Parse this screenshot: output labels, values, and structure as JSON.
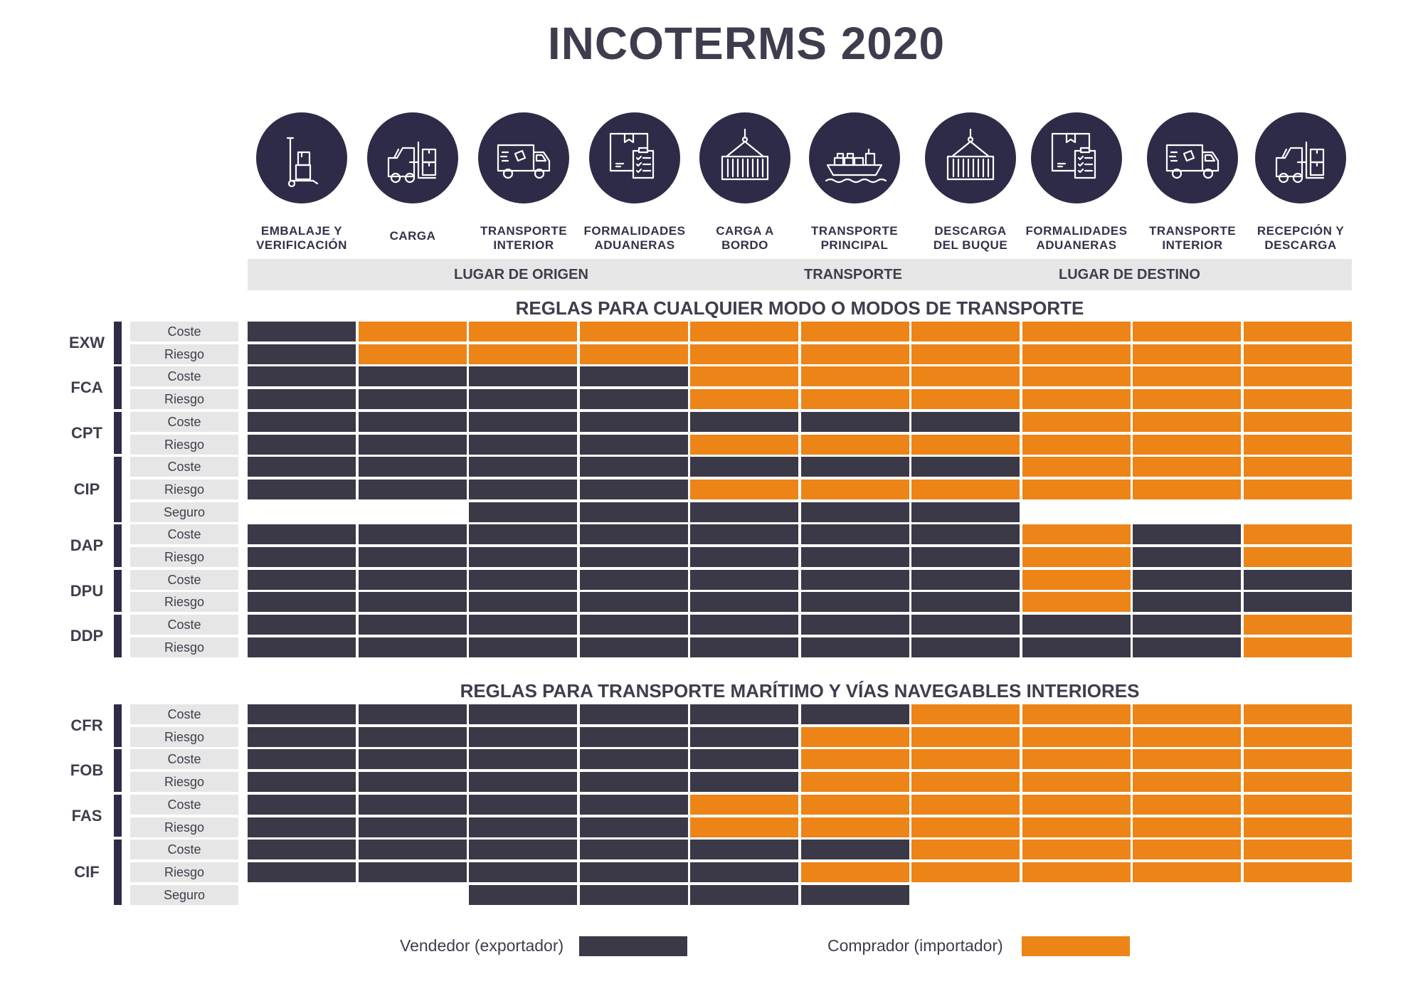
{
  "title": "INCOTERMS 2020",
  "colors": {
    "seller": "#3b3847",
    "buyer": "#ec8417",
    "icon_bg": "#2e2b48",
    "label_bg": "#e6e6e6"
  },
  "columns": [
    {
      "label_lines": [
        "EMBALAJE Y",
        "VERIFICACIÓN"
      ],
      "icon": "hand-truck-icon"
    },
    {
      "label_lines": [
        "CARGA",
        ""
      ],
      "icon": "forklift-icon"
    },
    {
      "label_lines": [
        "TRANSPORTE",
        "INTERIOR"
      ],
      "icon": "delivery-truck-icon"
    },
    {
      "label_lines": [
        "FORMALIDADES",
        "ADUANERAS"
      ],
      "icon": "customs-documents-icon"
    },
    {
      "label_lines": [
        "CARGA A",
        "BORDO"
      ],
      "icon": "crane-container-icon"
    },
    {
      "label_lines": [
        "TRANSPORTE",
        "PRINCIPAL"
      ],
      "icon": "cargo-ship-icon"
    },
    {
      "label_lines": [
        "DESCARGA",
        "DEL BUQUE"
      ],
      "icon": "crane-container-icon"
    },
    {
      "label_lines": [
        "FORMALIDADES",
        "ADUANERAS"
      ],
      "icon": "customs-documents-icon"
    },
    {
      "label_lines": [
        "TRANSPORTE",
        "INTERIOR"
      ],
      "icon": "delivery-truck-icon"
    },
    {
      "label_lines": [
        "RECEPCIÓN Y",
        "DESCARGA"
      ],
      "icon": "forklift-icon"
    }
  ],
  "phases": {
    "origin": "LUGAR DE ORIGEN",
    "transport": "TRANSPORTE",
    "destination": "LUGAR DE DESTINO"
  },
  "sections": [
    {
      "title": "REGLAS PARA CUALQUIER MODO O MODOS DE TRANSPORTE",
      "terms": [
        {
          "code": "EXW",
          "rows": [
            {
              "label": "Coste",
              "cells": "SBBBBBBBBB"
            },
            {
              "label": "Riesgo",
              "cells": "SBBBBBBBBB"
            }
          ]
        },
        {
          "code": "FCA",
          "rows": [
            {
              "label": "Coste",
              "cells": "SSSSBBBBBB"
            },
            {
              "label": "Riesgo",
              "cells": "SSSSBBBBBB"
            }
          ]
        },
        {
          "code": "CPT",
          "rows": [
            {
              "label": "Coste",
              "cells": "SSSSSSSBBB"
            },
            {
              "label": "Riesgo",
              "cells": "SSSSBBBBBB"
            }
          ]
        },
        {
          "code": "CIP",
          "rows": [
            {
              "label": "Coste",
              "cells": "SSSSSSSBBB"
            },
            {
              "label": "Riesgo",
              "cells": "SSSSBBBBBB"
            },
            {
              "label": "Seguro",
              "cells": "..SSSSS..."
            }
          ]
        },
        {
          "code": "DAP",
          "rows": [
            {
              "label": "Coste",
              "cells": "SSSSSSSBSB"
            },
            {
              "label": "Riesgo",
              "cells": "SSSSSSSBSB"
            }
          ]
        },
        {
          "code": "DPU",
          "rows": [
            {
              "label": "Coste",
              "cells": "SSSSSSSBSS"
            },
            {
              "label": "Riesgo",
              "cells": "SSSSSSSBSS"
            }
          ]
        },
        {
          "code": "DDP",
          "rows": [
            {
              "label": "Coste",
              "cells": "SSSSSSSSSB"
            },
            {
              "label": "Riesgo",
              "cells": "SSSSSSSSSB"
            }
          ]
        }
      ]
    },
    {
      "title": "REGLAS PARA TRANSPORTE MARÍTIMO Y VÍAS NAVEGABLES INTERIORES",
      "terms": [
        {
          "code": "CFR",
          "rows": [
            {
              "label": "Coste",
              "cells": "SSSSSSBBBB"
            },
            {
              "label": "Riesgo",
              "cells": "SSSSSBBBBB"
            }
          ]
        },
        {
          "code": "FOB",
          "rows": [
            {
              "label": "Coste",
              "cells": "SSSSSBBBBB"
            },
            {
              "label": "Riesgo",
              "cells": "SSSSSBBBBB"
            }
          ]
        },
        {
          "code": "FAS",
          "rows": [
            {
              "label": "Coste",
              "cells": "SSSSBBBBBB"
            },
            {
              "label": "Riesgo",
              "cells": "SSSSBBBBBB"
            }
          ]
        },
        {
          "code": "CIF",
          "rows": [
            {
              "label": "Coste",
              "cells": "SSSSSSBBBB"
            },
            {
              "label": "Riesgo",
              "cells": "SSSSSBBBBB"
            },
            {
              "label": "Seguro",
              "cells": "..SSSS...."
            }
          ]
        }
      ]
    }
  ],
  "legend": {
    "seller": {
      "label": "Vendedor (exportador)"
    },
    "buyer": {
      "label": "Comprador (importador)"
    }
  }
}
